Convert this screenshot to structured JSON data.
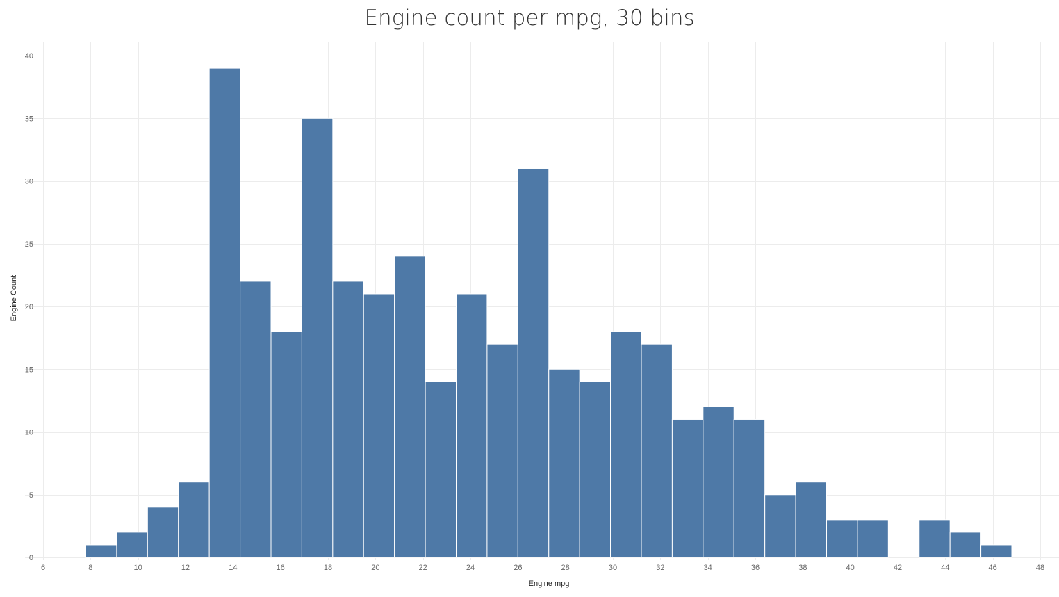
{
  "chart_data": {
    "type": "bar",
    "title": "Engine count per mpg, 30 bins",
    "xlabel": "Engine mpg",
    "ylabel": "Engine Count",
    "xlim": [
      6,
      48
    ],
    "ylim": [
      0,
      41
    ],
    "xticks": [
      6,
      8,
      10,
      12,
      14,
      16,
      18,
      20,
      22,
      24,
      26,
      28,
      30,
      32,
      34,
      36,
      38,
      40,
      42,
      44,
      46,
      48
    ],
    "yticks": [
      0,
      5,
      10,
      15,
      20,
      25,
      30,
      35,
      40
    ],
    "bins": [
      {
        "x0": 7.8,
        "x1": 9.1,
        "count": 1
      },
      {
        "x0": 9.1,
        "x1": 10.4,
        "count": 2
      },
      {
        "x0": 10.4,
        "x1": 11.7,
        "count": 4
      },
      {
        "x0": 11.7,
        "x1": 13.0,
        "count": 6
      },
      {
        "x0": 13.0,
        "x1": 14.3,
        "count": 39
      },
      {
        "x0": 14.3,
        "x1": 15.6,
        "count": 22
      },
      {
        "x0": 15.6,
        "x1": 16.9,
        "count": 18
      },
      {
        "x0": 16.9,
        "x1": 18.2,
        "count": 35
      },
      {
        "x0": 18.2,
        "x1": 19.5,
        "count": 22
      },
      {
        "x0": 19.5,
        "x1": 20.8,
        "count": 21
      },
      {
        "x0": 20.8,
        "x1": 22.1,
        "count": 24
      },
      {
        "x0": 22.1,
        "x1": 23.4,
        "count": 14
      },
      {
        "x0": 23.4,
        "x1": 24.7,
        "count": 21
      },
      {
        "x0": 24.7,
        "x1": 26.0,
        "count": 17
      },
      {
        "x0": 26.0,
        "x1": 27.3,
        "count": 31
      },
      {
        "x0": 27.3,
        "x1": 28.6,
        "count": 15
      },
      {
        "x0": 28.6,
        "x1": 29.9,
        "count": 14
      },
      {
        "x0": 29.9,
        "x1": 31.2,
        "count": 18
      },
      {
        "x0": 31.2,
        "x1": 32.5,
        "count": 17
      },
      {
        "x0": 32.5,
        "x1": 33.8,
        "count": 11
      },
      {
        "x0": 33.8,
        "x1": 35.1,
        "count": 12
      },
      {
        "x0": 35.1,
        "x1": 36.4,
        "count": 11
      },
      {
        "x0": 36.4,
        "x1": 37.7,
        "count": 5
      },
      {
        "x0": 37.7,
        "x1": 39.0,
        "count": 6
      },
      {
        "x0": 39.0,
        "x1": 40.3,
        "count": 3
      },
      {
        "x0": 40.3,
        "x1": 41.6,
        "count": 3
      },
      {
        "x0": 41.6,
        "x1": 42.9,
        "count": 0
      },
      {
        "x0": 42.9,
        "x1": 44.2,
        "count": 3
      },
      {
        "x0": 44.2,
        "x1": 45.5,
        "count": 2
      },
      {
        "x0": 45.5,
        "x1": 46.8,
        "count": 1
      }
    ],
    "bar_color": "#4e79a7",
    "grid": true,
    "legend": "none"
  }
}
